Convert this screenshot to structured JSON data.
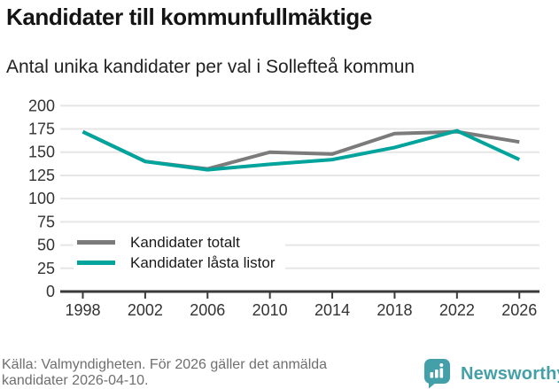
{
  "title": "Kandidater till kommunfullmäktige",
  "subtitle": "Antal unika kandidater per val i Sollefteå kommun",
  "chart_data": {
    "type": "line",
    "categories": [
      "1998",
      "2002",
      "2006",
      "2010",
      "2014",
      "2018",
      "2022",
      "2026"
    ],
    "series": [
      {
        "name": "Kandidater totalt",
        "color_key": "total_line",
        "values": [
          172,
          140,
          132,
          150,
          148,
          170,
          172,
          161
        ]
      },
      {
        "name": "Kandidater låsta listor",
        "color_key": "locked_line",
        "values": [
          172,
          140,
          131,
          137,
          142,
          155,
          173,
          142
        ]
      }
    ],
    "yticks": [
      0,
      25,
      50,
      75,
      100,
      125,
      150,
      175,
      200
    ],
    "ylim": [
      0,
      200
    ],
    "xlabel": "",
    "ylabel": "",
    "grid": "horizontal",
    "legend_position": "inside-left-middle"
  },
  "footer": {
    "source_line1": "Källa: Valmyndigheten. För 2026 gäller det anmälda",
    "source_line2": "kandidater 2026-04-10."
  },
  "branding": {
    "name": "Newsworthy",
    "logo_icon": "bar-chart-speech-bubble-icon"
  },
  "colors": {
    "total_line": "#7b7b7b",
    "locked_line": "#00a49c",
    "grid": "#e6e6e6",
    "axis": "#3a3a3a",
    "tick_text": "#333333",
    "footer_text": "#6f6f6f",
    "brand": "#44a0a8"
  }
}
